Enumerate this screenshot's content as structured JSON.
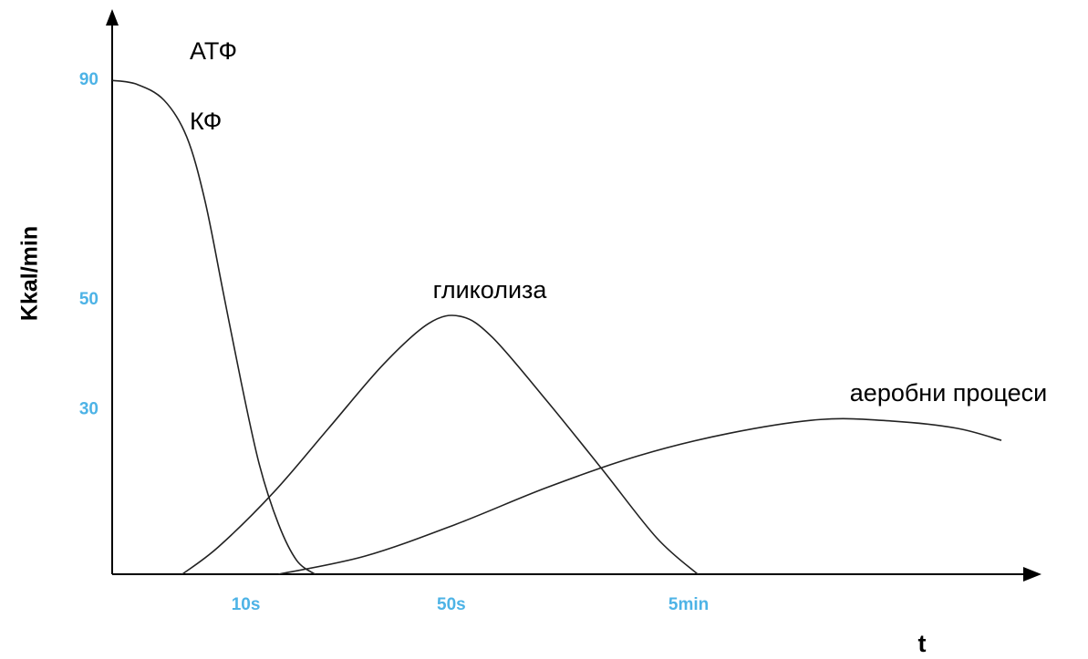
{
  "chart_data": {
    "type": "line",
    "ylabel": "Kkal/min",
    "xlabel": "t",
    "xlim": [
      0,
      100
    ],
    "ylim": [
      0,
      100
    ],
    "xticks": [
      {
        "value": 14.7,
        "label": "10s"
      },
      {
        "value": 37.3,
        "label": "50s"
      },
      {
        "value": 63.4,
        "label": "5min"
      }
    ],
    "yticks": [
      30,
      50,
      90
    ],
    "annotations": [
      "АТФ",
      "КФ",
      "гликолиза",
      "аеробни процеси"
    ],
    "series": [
      {
        "color": "#222222",
        "x": [
          0,
          2.7,
          5.7,
          8.2,
          10.2,
          12.2,
          14.2,
          16.2,
          18.3,
          20.3,
          22.3
        ],
        "values": [
          90,
          89.3,
          86.4,
          79.7,
          68.1,
          51.5,
          34.9,
          19.9,
          9.1,
          2.5,
          0
        ]
      },
      {
        "color": "#222222",
        "x": [
          7.7,
          11.7,
          17.8,
          23.8,
          29.8,
          34.8,
          38.3,
          41.8,
          47.8,
          53.9,
          59.9,
          64.4
        ],
        "values": [
          0,
          5,
          15,
          26.6,
          38.2,
          45.7,
          47,
          43.2,
          31.6,
          19.1,
          6.6,
          0
        ]
      },
      {
        "color": "#222222",
        "x": [
          18.3,
          27.8,
          37.8,
          47.8,
          57.9,
          67.9,
          77.9,
          85.9,
          92.9,
          97.8
        ],
        "values": [
          0,
          3.3,
          9.1,
          15.8,
          21.6,
          25.7,
          28.2,
          27.9,
          26.6,
          24.4
        ]
      }
    ]
  }
}
